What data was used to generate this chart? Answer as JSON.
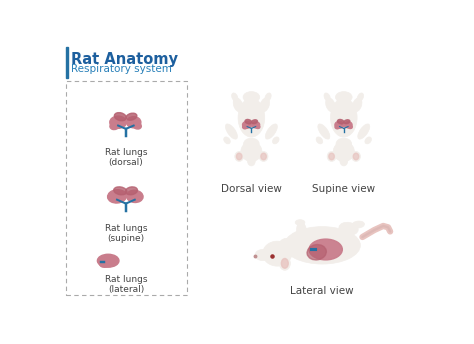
{
  "title": "Rat Anatomy",
  "subtitle": "Respiratory system",
  "title_color": "#1d5f9e",
  "subtitle_color": "#2980b9",
  "background_color": "#ffffff",
  "lung_color": "#c97d8c",
  "lung_lobe_color": "#b56070",
  "trachea_color": "#2471a3",
  "rat_body_color": "#f2eeea",
  "rat_body_outline": "#ddd8d0",
  "rat_pink": "#e8c4c0",
  "rat_ear_inner": "#f0d0cc",
  "labels": {
    "dorsal": "Rat lungs\n(dorsal)",
    "supine": "Rat lungs\n(supine)",
    "lateral": "Rat lungs\n(lateral)",
    "dorsal_view": "Dorsal view",
    "supine_view": "Supine view",
    "lateral_view": "Lateral view"
  },
  "panel_border_color": "#aaaaaa",
  "label_color": "#444444",
  "accent_bar_color": "#2471a3"
}
